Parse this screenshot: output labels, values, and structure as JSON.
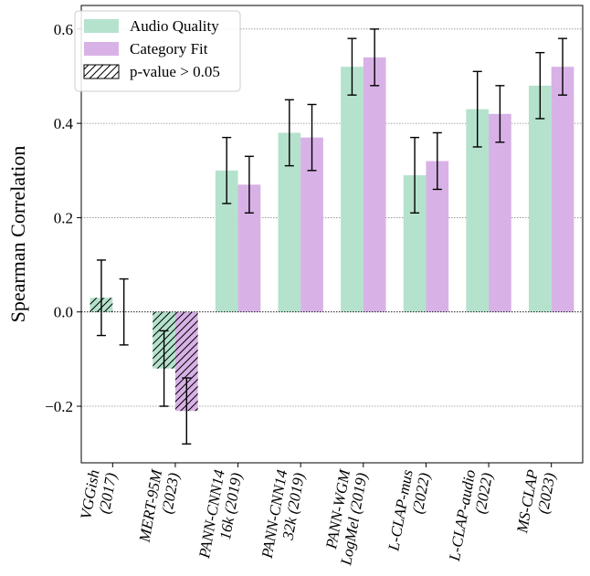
{
  "chart_data": {
    "type": "bar",
    "title": "",
    "xlabel": "",
    "ylabel": "Spearman Correlation",
    "ylim": [
      -0.32,
      0.65
    ],
    "yticks": [
      {
        "value": -0.2,
        "label": "−0.2"
      },
      {
        "value": 0.0,
        "label": "0.0"
      },
      {
        "value": 0.2,
        "label": "0.2"
      },
      {
        "value": 0.4,
        "label": "0.4"
      },
      {
        "value": 0.6,
        "label": "0.6"
      }
    ],
    "grid": "horizontal dotted",
    "legend_position": "top-left",
    "categories": [
      [
        "VGGish",
        "(2017)"
      ],
      [
        "MERT-95M",
        "(2023)"
      ],
      [
        "PANN-CNN14",
        "16k (2019)"
      ],
      [
        "PANN-CNN14",
        "32k (2019)"
      ],
      [
        "PANN-WGM",
        "LogMel (2019)"
      ],
      [
        "L-CLAP-mus",
        "(2022)"
      ],
      [
        "L-CLAP-audio",
        "(2022)"
      ],
      [
        "MS-CLAP",
        "(2023)"
      ]
    ],
    "series": [
      {
        "name": "Audio Quality",
        "color": "#b5e2cd",
        "values": [
          0.03,
          -0.12,
          0.3,
          0.38,
          0.52,
          0.29,
          0.43,
          0.48
        ],
        "err_low": [
          -0.05,
          -0.2,
          0.23,
          0.31,
          0.46,
          0.21,
          0.35,
          0.41
        ],
        "err_high": [
          0.11,
          -0.04,
          0.37,
          0.45,
          0.58,
          0.37,
          0.51,
          0.55
        ],
        "not_significant": [
          true,
          true,
          false,
          false,
          false,
          false,
          false,
          false
        ]
      },
      {
        "name": "Category Fit",
        "color": "#d8b2e6",
        "values": [
          0.0,
          -0.21,
          0.27,
          0.37,
          0.54,
          0.32,
          0.42,
          0.52
        ],
        "err_low": [
          -0.07,
          -0.28,
          0.21,
          0.3,
          0.48,
          0.26,
          0.36,
          0.46
        ],
        "err_high": [
          0.07,
          -0.14,
          0.33,
          0.44,
          0.6,
          0.38,
          0.48,
          0.58
        ],
        "not_significant": [
          true,
          true,
          false,
          false,
          false,
          false,
          false,
          false
        ]
      }
    ],
    "legend_extra": {
      "label": "p-value > 0.05",
      "pattern": "hatch"
    }
  }
}
